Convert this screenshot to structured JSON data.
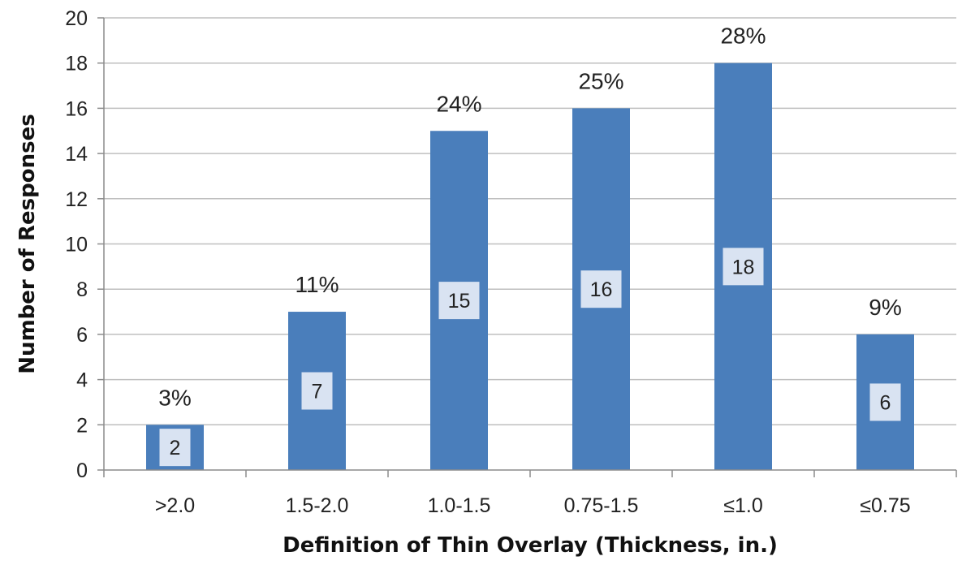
{
  "chart_data": {
    "type": "bar",
    "title": "",
    "xlabel": "Definition of Thin Overlay (Thickness, in.)",
    "ylabel": "Number of Responses",
    "categories": [
      ">2.0",
      "1.5-2.0",
      "1.0-1.5",
      "0.75-1.5",
      "≤1.0",
      "≤0.75"
    ],
    "values": [
      2,
      7,
      15,
      16,
      18,
      6
    ],
    "percent_labels": [
      "3%",
      "11%",
      "24%",
      "25%",
      "28%",
      "9%"
    ],
    "ylim": [
      0,
      20
    ],
    "yticks": [
      0,
      2,
      4,
      6,
      8,
      10,
      12,
      14,
      16,
      18,
      20
    ],
    "grid": true,
    "legend": "none",
    "bar_color": "#4a7ebb",
    "value_box_color": "#d9e3f2"
  }
}
